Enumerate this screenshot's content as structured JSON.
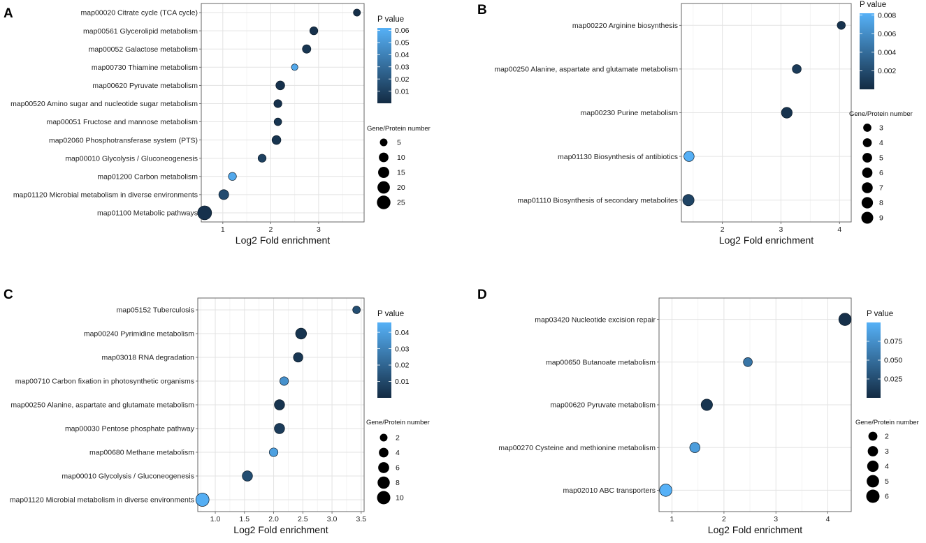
{
  "chart_data": [
    {
      "panel": "A",
      "type": "scatter",
      "xlabel": "Log2 Fold enrichment",
      "xlim": [
        0.55,
        3.95
      ],
      "xticks": [
        "1",
        "2",
        "3"
      ],
      "categories": [
        "map00020 Citrate cycle (TCA cycle)",
        "map00561 Glycerolipid metabolism",
        "map00052 Galactose metabolism",
        "map00730 Thiamine metabolism",
        "map00620 Pyruvate metabolism",
        "map00520 Amino sugar and nucleotide sugar metabolism",
        "map00051 Fructose and mannose metabolism",
        "map02060 Phosphotransferase system (PTS)",
        "map00010 Glycolysis / Gluconeogenesis",
        "map01200 Carbon metabolism",
        "map01120 Microbial metabolism in diverse environments",
        "map01100 Metabolic pathways"
      ],
      "x": [
        3.8,
        2.9,
        2.75,
        2.5,
        2.2,
        2.15,
        2.15,
        2.12,
        1.82,
        1.2,
        1.02,
        0.62
      ],
      "size": [
        4,
        6,
        7,
        3,
        8,
        6,
        5,
        8,
        6,
        6,
        11,
        27
      ],
      "pvalue": [
        0.002,
        0.003,
        0.005,
        0.058,
        0.003,
        0.003,
        0.005,
        0.004,
        0.01,
        0.058,
        0.015,
        0.003
      ],
      "pvalue_legend": {
        "title": "P value",
        "ticks": [
          "0.06",
          "0.05",
          "0.04",
          "0.03",
          "0.02",
          "0.01"
        ],
        "range": [
          0.0,
          0.062
        ]
      },
      "size_legend": {
        "title": "Gene/Protein number",
        "values": [
          "5",
          "10",
          "15",
          "20",
          "25"
        ],
        "max": 27
      }
    },
    {
      "panel": "B",
      "type": "scatter",
      "xlabel": "Log2 Fold enrichment",
      "xlim": [
        1.3,
        4.2
      ],
      "xticks": [
        "2",
        "3",
        "4"
      ],
      "categories": [
        "map00220 Arginine biosynthesis",
        "map00250 Alanine, aspartate and glutamate metabolism",
        "map00230 Purine metabolism",
        "map01130 Biosynthesis of antibiotics",
        "map01110 Biosynthesis of secondary metabolites"
      ],
      "x": [
        4.03,
        3.27,
        3.1,
        1.43,
        1.42
      ],
      "size": [
        3,
        4,
        7,
        6,
        8
      ],
      "pvalue": [
        0.0005,
        0.001,
        0.0005,
        0.0081,
        0.0015
      ],
      "pvalue_legend": {
        "title": "P value",
        "ticks": [
          "0.008",
          "0.006",
          "0.004",
          "0.002"
        ],
        "range": [
          0.0,
          0.0082
        ]
      },
      "size_legend": {
        "title": "Gene/Protein number",
        "values": [
          "3",
          "4",
          "5",
          "6",
          "7",
          "8",
          "9"
        ],
        "max": 9
      }
    },
    {
      "panel": "C",
      "type": "scatter",
      "xlabel": "Log2 Fold enrichment",
      "xlim": [
        0.7,
        3.55
      ],
      "xticks": [
        "1.0",
        "1.5",
        "2.0",
        "2.5",
        "3.0",
        "3.5"
      ],
      "categories": [
        "map05152 Tuberculosis",
        "map00240 Pyrimidine metabolism",
        "map03018 RNA degradation",
        "map00710 Carbon fixation in photosynthetic organisms",
        "map00250 Alanine, aspartate and glutamate metabolism",
        "map00030 Pentose phosphate pathway",
        "map00680 Methane metabolism",
        "map00010 Glycolysis / Gluconeogenesis",
        "map01120 Microbial metabolism in diverse environments"
      ],
      "x": [
        3.42,
        2.47,
        2.42,
        2.18,
        2.1,
        2.1,
        2.0,
        1.55,
        0.78
      ],
      "size": [
        2,
        6,
        4,
        3,
        5,
        5,
        3,
        5,
        10
      ],
      "pvalue": [
        0.012,
        0.003,
        0.004,
        0.035,
        0.003,
        0.006,
        0.04,
        0.012,
        0.045
      ],
      "pvalue_legend": {
        "title": "P value",
        "ticks": [
          "0.04",
          "0.03",
          "0.02",
          "0.01"
        ],
        "range": [
          0.0,
          0.046
        ]
      },
      "size_legend": {
        "title": "Gene/Protein number",
        "values": [
          "2",
          "4",
          "6",
          "8",
          "10"
        ],
        "max": 10
      }
    },
    {
      "panel": "D",
      "type": "scatter",
      "xlabel": "Log2 Fold enrichment",
      "xlim": [
        0.75,
        4.45
      ],
      "xticks": [
        "1",
        "2",
        "3",
        "4"
      ],
      "categories": [
        "map03420 Nucleotide excision repair",
        "map00650 Butanoate metabolism",
        "map00620 Pyruvate metabolism",
        "map00270 Cysteine and methionine metabolism",
        "map02010 ABC transporters"
      ],
      "x": [
        4.33,
        2.46,
        1.67,
        1.44,
        0.88
      ],
      "size": [
        5,
        2,
        4,
        3,
        5
      ],
      "pvalue": [
        0.004,
        0.055,
        0.008,
        0.085,
        0.1
      ],
      "pvalue_legend": {
        "title": "P value",
        "ticks": [
          "0.075",
          "0.050",
          "0.025"
        ],
        "range": [
          0.0,
          0.1
        ]
      },
      "size_legend": {
        "title": "Gene/Protein number",
        "values": [
          "2",
          "3",
          "4",
          "5",
          "6"
        ],
        "max": 6
      }
    }
  ]
}
